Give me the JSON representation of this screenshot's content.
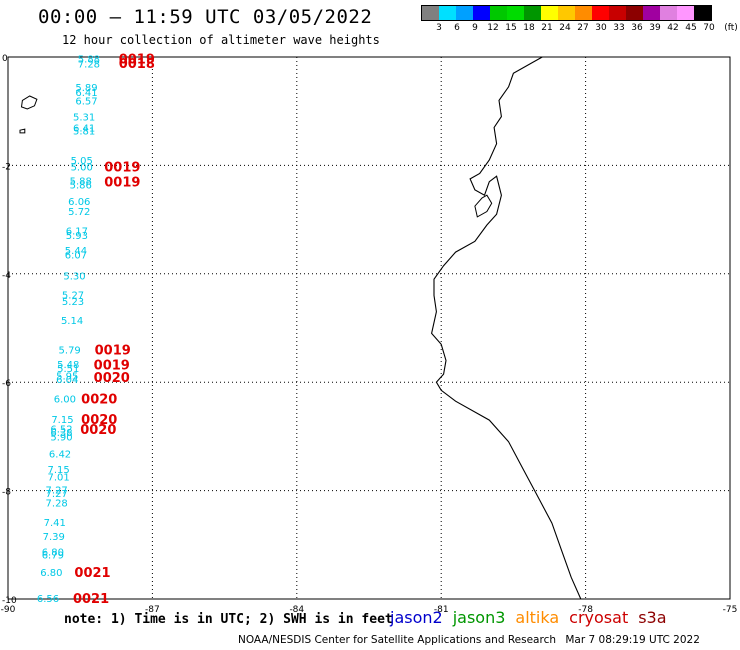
{
  "header": {
    "title": "00:00 – 11:59 UTC 03/05/2022",
    "subtitle": "12 hour collection of altimeter wave heights"
  },
  "legend": {
    "colors": [
      "#808080",
      "#00e0ff",
      "#00a0ff",
      "#0000ff",
      "#00c800",
      "#00dc00",
      "#009600",
      "#ffff00",
      "#ffc800",
      "#ff8c00",
      "#ff0000",
      "#c80000",
      "#8c0000",
      "#a000a0",
      "#e080e0",
      "#ff96ff",
      "#000000"
    ],
    "labels": [
      "3",
      "6",
      "9",
      "12",
      "15",
      "18",
      "21",
      "24",
      "27",
      "30",
      "33",
      "36",
      "39",
      "42",
      "45",
      "70"
    ],
    "unit": "(ft)"
  },
  "axes": {
    "y_labels": [
      "0",
      "-2",
      "-4",
      "-6",
      "-8",
      "-10"
    ],
    "x_labels": [
      "-90",
      "-87",
      "-84",
      "-81",
      "-78",
      "-75"
    ]
  },
  "observations": {
    "wave_heights": [
      {
        "v": "5.88",
        "x": -88.55,
        "y": -0.03
      },
      {
        "v": "7.28",
        "x": -88.55,
        "y": -0.12
      },
      {
        "v": "5.89",
        "x": -88.6,
        "y": -0.55
      },
      {
        "v": "6.41",
        "x": -88.6,
        "y": -0.65
      },
      {
        "v": "6.57",
        "x": -88.6,
        "y": -0.8
      },
      {
        "v": "5.31",
        "x": -88.65,
        "y": -1.1
      },
      {
        "v": "6.41",
        "x": -88.65,
        "y": -1.3
      },
      {
        "v": "5.81",
        "x": -88.65,
        "y": -1.36
      },
      {
        "v": "5.05",
        "x": -88.7,
        "y": -1.9
      },
      {
        "v": "5.00",
        "x": -88.7,
        "y": -2.02
      },
      {
        "v": "5.88",
        "x": -88.72,
        "y": -2.28
      },
      {
        "v": "5.86",
        "x": -88.72,
        "y": -2.35
      },
      {
        "v": "6.06",
        "x": -88.75,
        "y": -2.66
      },
      {
        "v": "5.72",
        "x": -88.75,
        "y": -2.84
      },
      {
        "v": "6.17",
        "x": -88.8,
        "y": -3.2
      },
      {
        "v": "5.93",
        "x": -88.8,
        "y": -3.28
      },
      {
        "v": "5.44",
        "x": -88.82,
        "y": -3.56
      },
      {
        "v": "6.07",
        "x": -88.82,
        "y": -3.64
      },
      {
        "v": "5.30",
        "x": -88.85,
        "y": -4.03
      },
      {
        "v": "5.27",
        "x": -88.88,
        "y": -4.38
      },
      {
        "v": "5.23",
        "x": -88.88,
        "y": -4.5
      },
      {
        "v": "5.14",
        "x": -88.9,
        "y": -4.85
      },
      {
        "v": "5.79",
        "x": -88.95,
        "y": -5.4
      },
      {
        "v": "5.48",
        "x": -88.98,
        "y": -5.66
      },
      {
        "v": "5.51",
        "x": -88.98,
        "y": -5.74
      },
      {
        "v": "5.95",
        "x": -89.0,
        "y": -5.88
      },
      {
        "v": "6.04",
        "x": -89.0,
        "y": -5.94
      },
      {
        "v": "6.00",
        "x": -89.05,
        "y": -6.3
      },
      {
        "v": "7.15",
        "x": -89.1,
        "y": -6.68
      },
      {
        "v": "6.52",
        "x": -89.12,
        "y": -6.85
      },
      {
        "v": "6.38",
        "x": -89.12,
        "y": -6.92
      },
      {
        "v": "5.90",
        "x": -89.12,
        "y": -7.0
      },
      {
        "v": "6.42",
        "x": -89.15,
        "y": -7.32
      },
      {
        "v": "7.15",
        "x": -89.18,
        "y": -7.6
      },
      {
        "v": "7.01",
        "x": -89.18,
        "y": -7.74
      },
      {
        "v": "7.27",
        "x": -89.22,
        "y": -7.98
      },
      {
        "v": "7.27",
        "x": -89.22,
        "y": -8.04
      },
      {
        "v": "7.28",
        "x": -89.22,
        "y": -8.22
      },
      {
        "v": "7.41",
        "x": -89.26,
        "y": -8.58
      },
      {
        "v": "7.39",
        "x": -89.28,
        "y": -8.84
      },
      {
        "v": "6.80",
        "x": -89.3,
        "y": -9.12
      },
      {
        "v": "6.79",
        "x": -89.3,
        "y": -9.18
      },
      {
        "v": "6.80",
        "x": -89.33,
        "y": -9.5
      },
      {
        "v": "6.56",
        "x": -89.4,
        "y": -9.98
      }
    ],
    "pass_times": [
      {
        "t": "0019",
        "x": -87.7,
        "y": -0.03
      },
      {
        "t": "0018",
        "x": -87.7,
        "y": -0.11
      },
      {
        "t": "0019",
        "x": -88.0,
        "y": -2.02
      },
      {
        "t": "0019",
        "x": -88.0,
        "y": -2.3
      },
      {
        "t": "0019",
        "x": -88.2,
        "y": -5.4
      },
      {
        "t": "0019",
        "x": -88.22,
        "y": -5.67
      },
      {
        "t": "0020",
        "x": -88.22,
        "y": -5.9
      },
      {
        "t": "0020",
        "x": -88.48,
        "y": -6.3
      },
      {
        "t": "0020",
        "x": -88.48,
        "y": -6.68
      },
      {
        "t": "0020",
        "x": -88.5,
        "y": -6.86
      },
      {
        "t": "0021",
        "x": -88.62,
        "y": -9.5
      },
      {
        "t": "0021",
        "x": -88.65,
        "y": -9.98
      }
    ]
  },
  "colors": {
    "wave_text": "#00c8e6",
    "time_text": "#e00000",
    "grid": "#000000",
    "coast": "#000000"
  },
  "footer": {
    "note": "note:  1) Time is in UTC; 2) SWH is in feet",
    "satellites": [
      {
        "name": "jason2",
        "color": "#0000cc"
      },
      {
        "name": "jason3",
        "color": "#009600"
      },
      {
        "name": "altika",
        "color": "#ff8c00"
      },
      {
        "name": "cryosat",
        "color": "#cc0000"
      },
      {
        "name": "s3a",
        "color": "#8c0000"
      }
    ],
    "credit": "NOAA/NESDIS Center for Satellite Applications and Research",
    "timestamp": "Mar  7 08:29:19 UTC 2022"
  }
}
